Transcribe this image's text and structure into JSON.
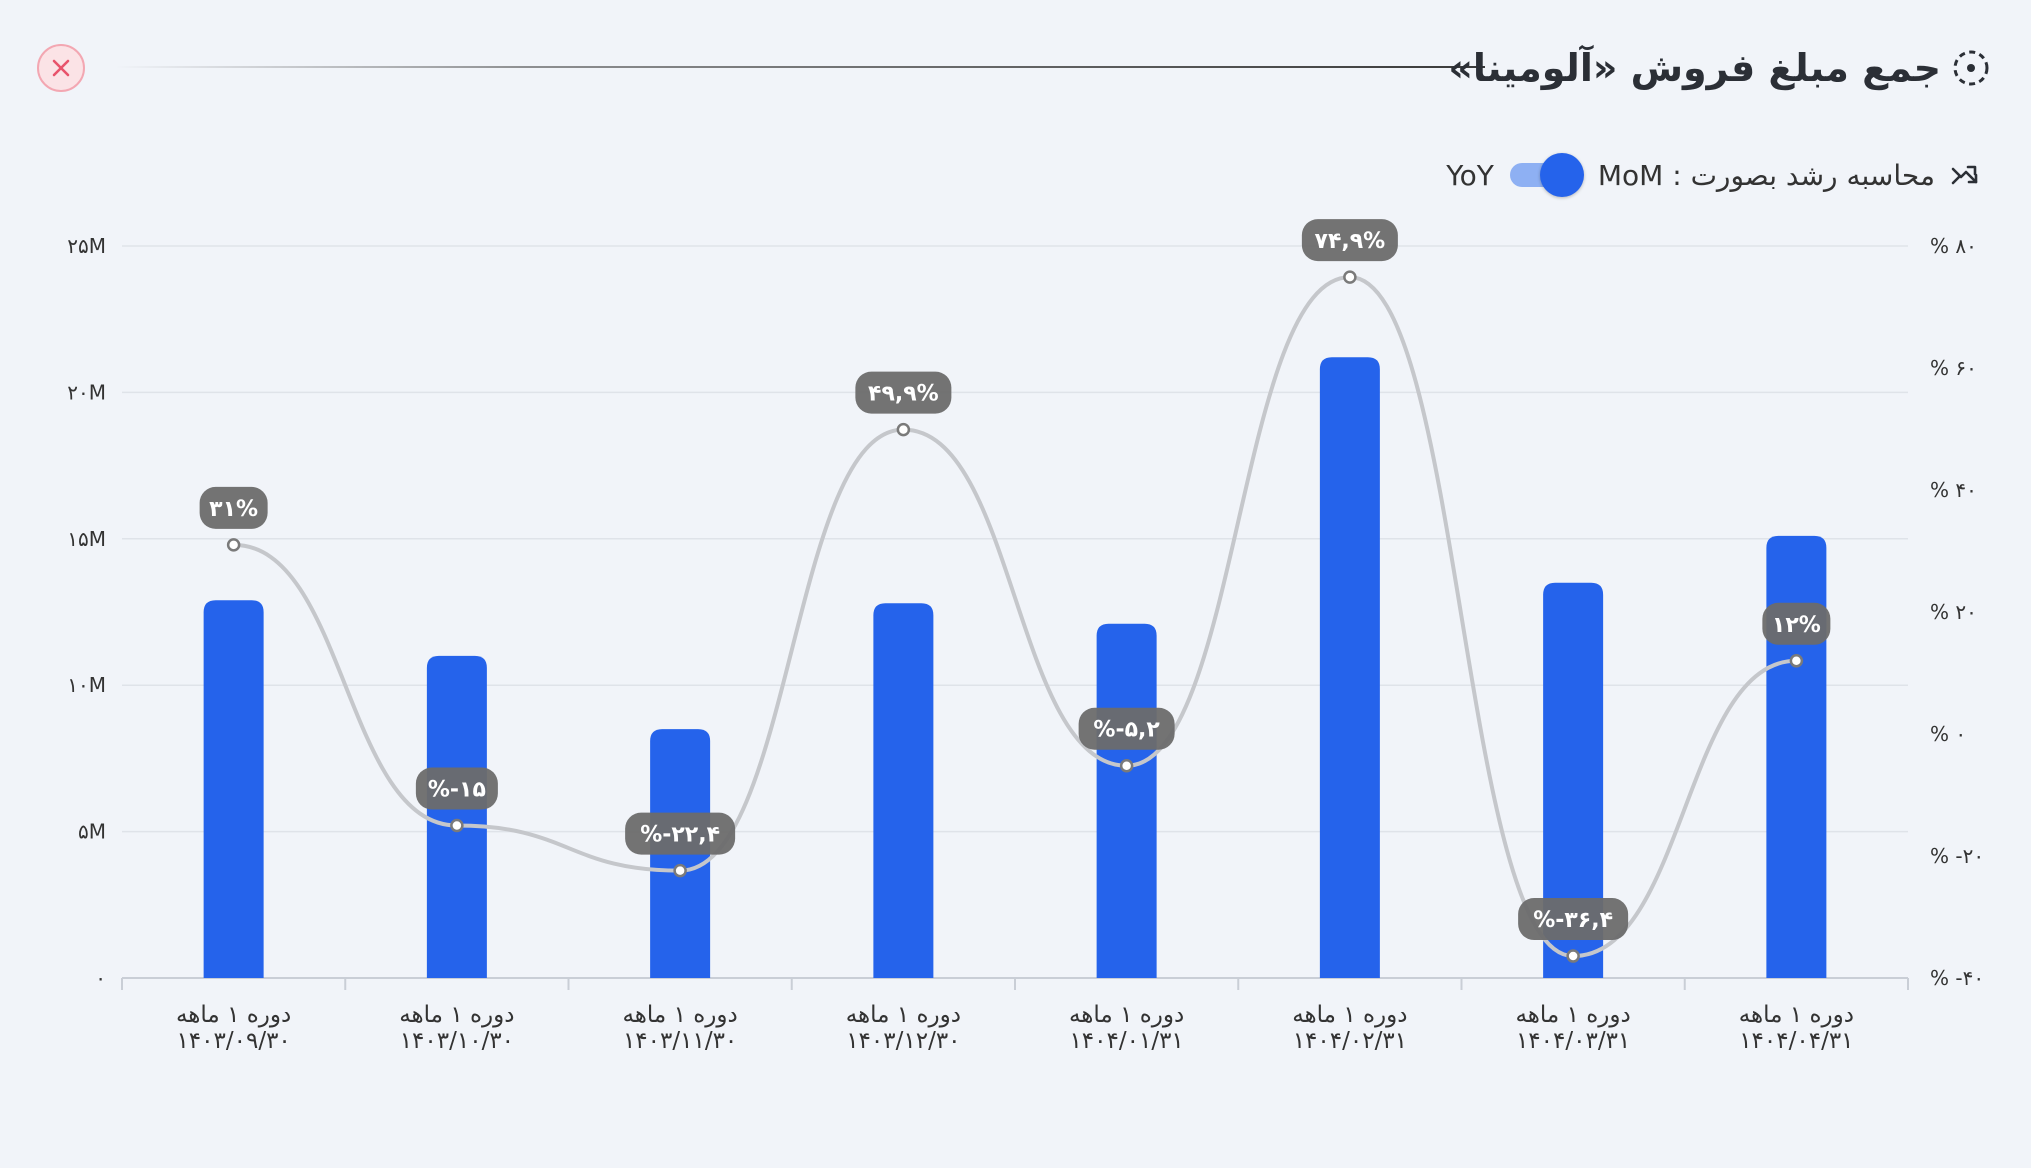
{
  "header": {
    "title": "جمع مبلغ فروش «آلومینا»",
    "close_icon": "close-icon",
    "title_icon": "dashed-circle-target-icon"
  },
  "controls": {
    "growth_icon": "trend-arrows-icon",
    "toggle_label": "محاسبه رشد بصورت : MoM",
    "toggle_on": true,
    "alt_label": "YoY"
  },
  "colors": {
    "bar": "#2563eb",
    "line": "#c5c7cb",
    "pill": "#6b6b6b",
    "close": "#e8536b",
    "grid": "#dfe3e9"
  },
  "chart_data": {
    "type": "bar",
    "categories": [
      [
        "دوره ۱ ماهه",
        "۱۴۰۳/۰۹/۳۰"
      ],
      [
        "دوره ۱ ماهه",
        "۱۴۰۳/۱۰/۳۰"
      ],
      [
        "دوره ۱ ماهه",
        "۱۴۰۳/۱۱/۳۰"
      ],
      [
        "دوره ۱ ماهه",
        "۱۴۰۳/۱۲/۳۰"
      ],
      [
        "دوره ۱ ماهه",
        "۱۴۰۴/۰۱/۳۱"
      ],
      [
        "دوره ۱ ماهه",
        "۱۴۰۴/۰۲/۳۱"
      ],
      [
        "دوره ۱ ماهه",
        "۱۴۰۴/۰۳/۳۱"
      ],
      [
        "دوره ۱ ماهه",
        "۱۴۰۴/۰۴/۳۱"
      ]
    ],
    "values": [
      12.9,
      11.0,
      8.5,
      12.8,
      12.1,
      21.2,
      13.5,
      15.1
    ],
    "y_unit": "M",
    "ylim": [
      0,
      25
    ],
    "yticks": [
      {
        "v": 0,
        "label": "۰"
      },
      {
        "v": 5,
        "label": "۵M"
      },
      {
        "v": 10,
        "label": "۱۰M"
      },
      {
        "v": 15,
        "label": "۱۵M"
      },
      {
        "v": 20,
        "label": "۲۰M"
      },
      {
        "v": 25,
        "label": "۲۵M"
      }
    ],
    "growth": {
      "values": [
        31,
        -15,
        -22.4,
        49.9,
        -5.2,
        74.9,
        -36.4,
        12
      ],
      "labels": [
        "۳۱%",
        "%-۱۵",
        "%-۲۲,۴",
        "۴۹,۹%",
        "%-۵,۲",
        "۷۴,۹%",
        "%-۳۶,۴",
        "۱۲%"
      ],
      "ylim": [
        -40,
        80
      ],
      "yticks": [
        {
          "v": -40,
          "label": "% -۴۰"
        },
        {
          "v": -20,
          "label": "% -۲۰"
        },
        {
          "v": 0,
          "label": "% ۰"
        },
        {
          "v": 20,
          "label": "% ۲۰"
        },
        {
          "v": 40,
          "label": "% ۴۰"
        },
        {
          "v": 60,
          "label": "% ۶۰"
        },
        {
          "v": 80,
          "label": "% ۸۰"
        }
      ]
    },
    "grid": true,
    "legend": "none"
  }
}
